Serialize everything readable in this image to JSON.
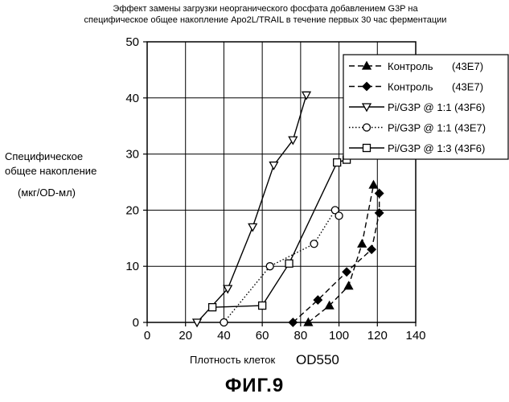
{
  "chart_data": {
    "type": "line",
    "title": "Эффект замены загрузки неорганического фосфата добавлением G3P на специфическое общее накопление Apo2L/TRAIL в течение первых 30 час ферментации",
    "title_lines": [
      "Эффект замены загрузки неорганического фосфата добавлением G3P на",
      "специфическое общее накопление Apo2L/TRAIL в течение первых 30 час ферментации"
    ],
    "ylabel_lines": [
      "Специфическое",
      "общее накопление"
    ],
    "yunit": "(мкг/OD-мл)",
    "xlabel": "Плотность клеток",
    "xlabel_suffix": "OD550",
    "xlim": [
      0,
      140
    ],
    "ylim": [
      0,
      50
    ],
    "xticks": [
      0,
      20,
      40,
      60,
      80,
      100,
      120,
      140
    ],
    "yticks": [
      0,
      10,
      20,
      30,
      40,
      50
    ],
    "grid": true,
    "legend_position": "top-right",
    "series": [
      {
        "name": "Контроль",
        "tag": "(43E7)",
        "marker": "triangle-up",
        "line": "dashed",
        "x": [
          84,
          95,
          105,
          112,
          118
        ],
        "y": [
          0,
          3,
          6.5,
          14,
          24.5
        ]
      },
      {
        "name": "Контроль",
        "tag": "(43E7)",
        "marker": "diamond",
        "line": "dashed",
        "x": [
          76,
          89,
          104,
          117,
          121,
          121
        ],
        "y": [
          0,
          4,
          9,
          13,
          19.5,
          23
        ]
      },
      {
        "name": "Pi/G3P @ 1:1",
        "tag": "(43F6)",
        "marker": "triangle-down",
        "line": "solid",
        "x": [
          26,
          42,
          55,
          66,
          76,
          83
        ],
        "y": [
          0,
          6,
          17,
          28,
          32.5,
          40.5
        ]
      },
      {
        "name": "Pi/G3P @ 1:1",
        "tag": "(43E7)",
        "marker": "circle",
        "line": "dotted",
        "x": [
          40,
          64,
          87,
          98,
          100
        ],
        "y": [
          0,
          10,
          14,
          20,
          19
        ]
      },
      {
        "name": "Pi/G3P @ 1:3",
        "tag": "(43F6)",
        "marker": "square",
        "line": "solid",
        "x": [
          34,
          60,
          74,
          99,
          104
        ],
        "y": [
          2.7,
          3,
          10.5,
          28.5,
          29
        ]
      }
    ]
  },
  "figure_label": "ФИГ.9"
}
